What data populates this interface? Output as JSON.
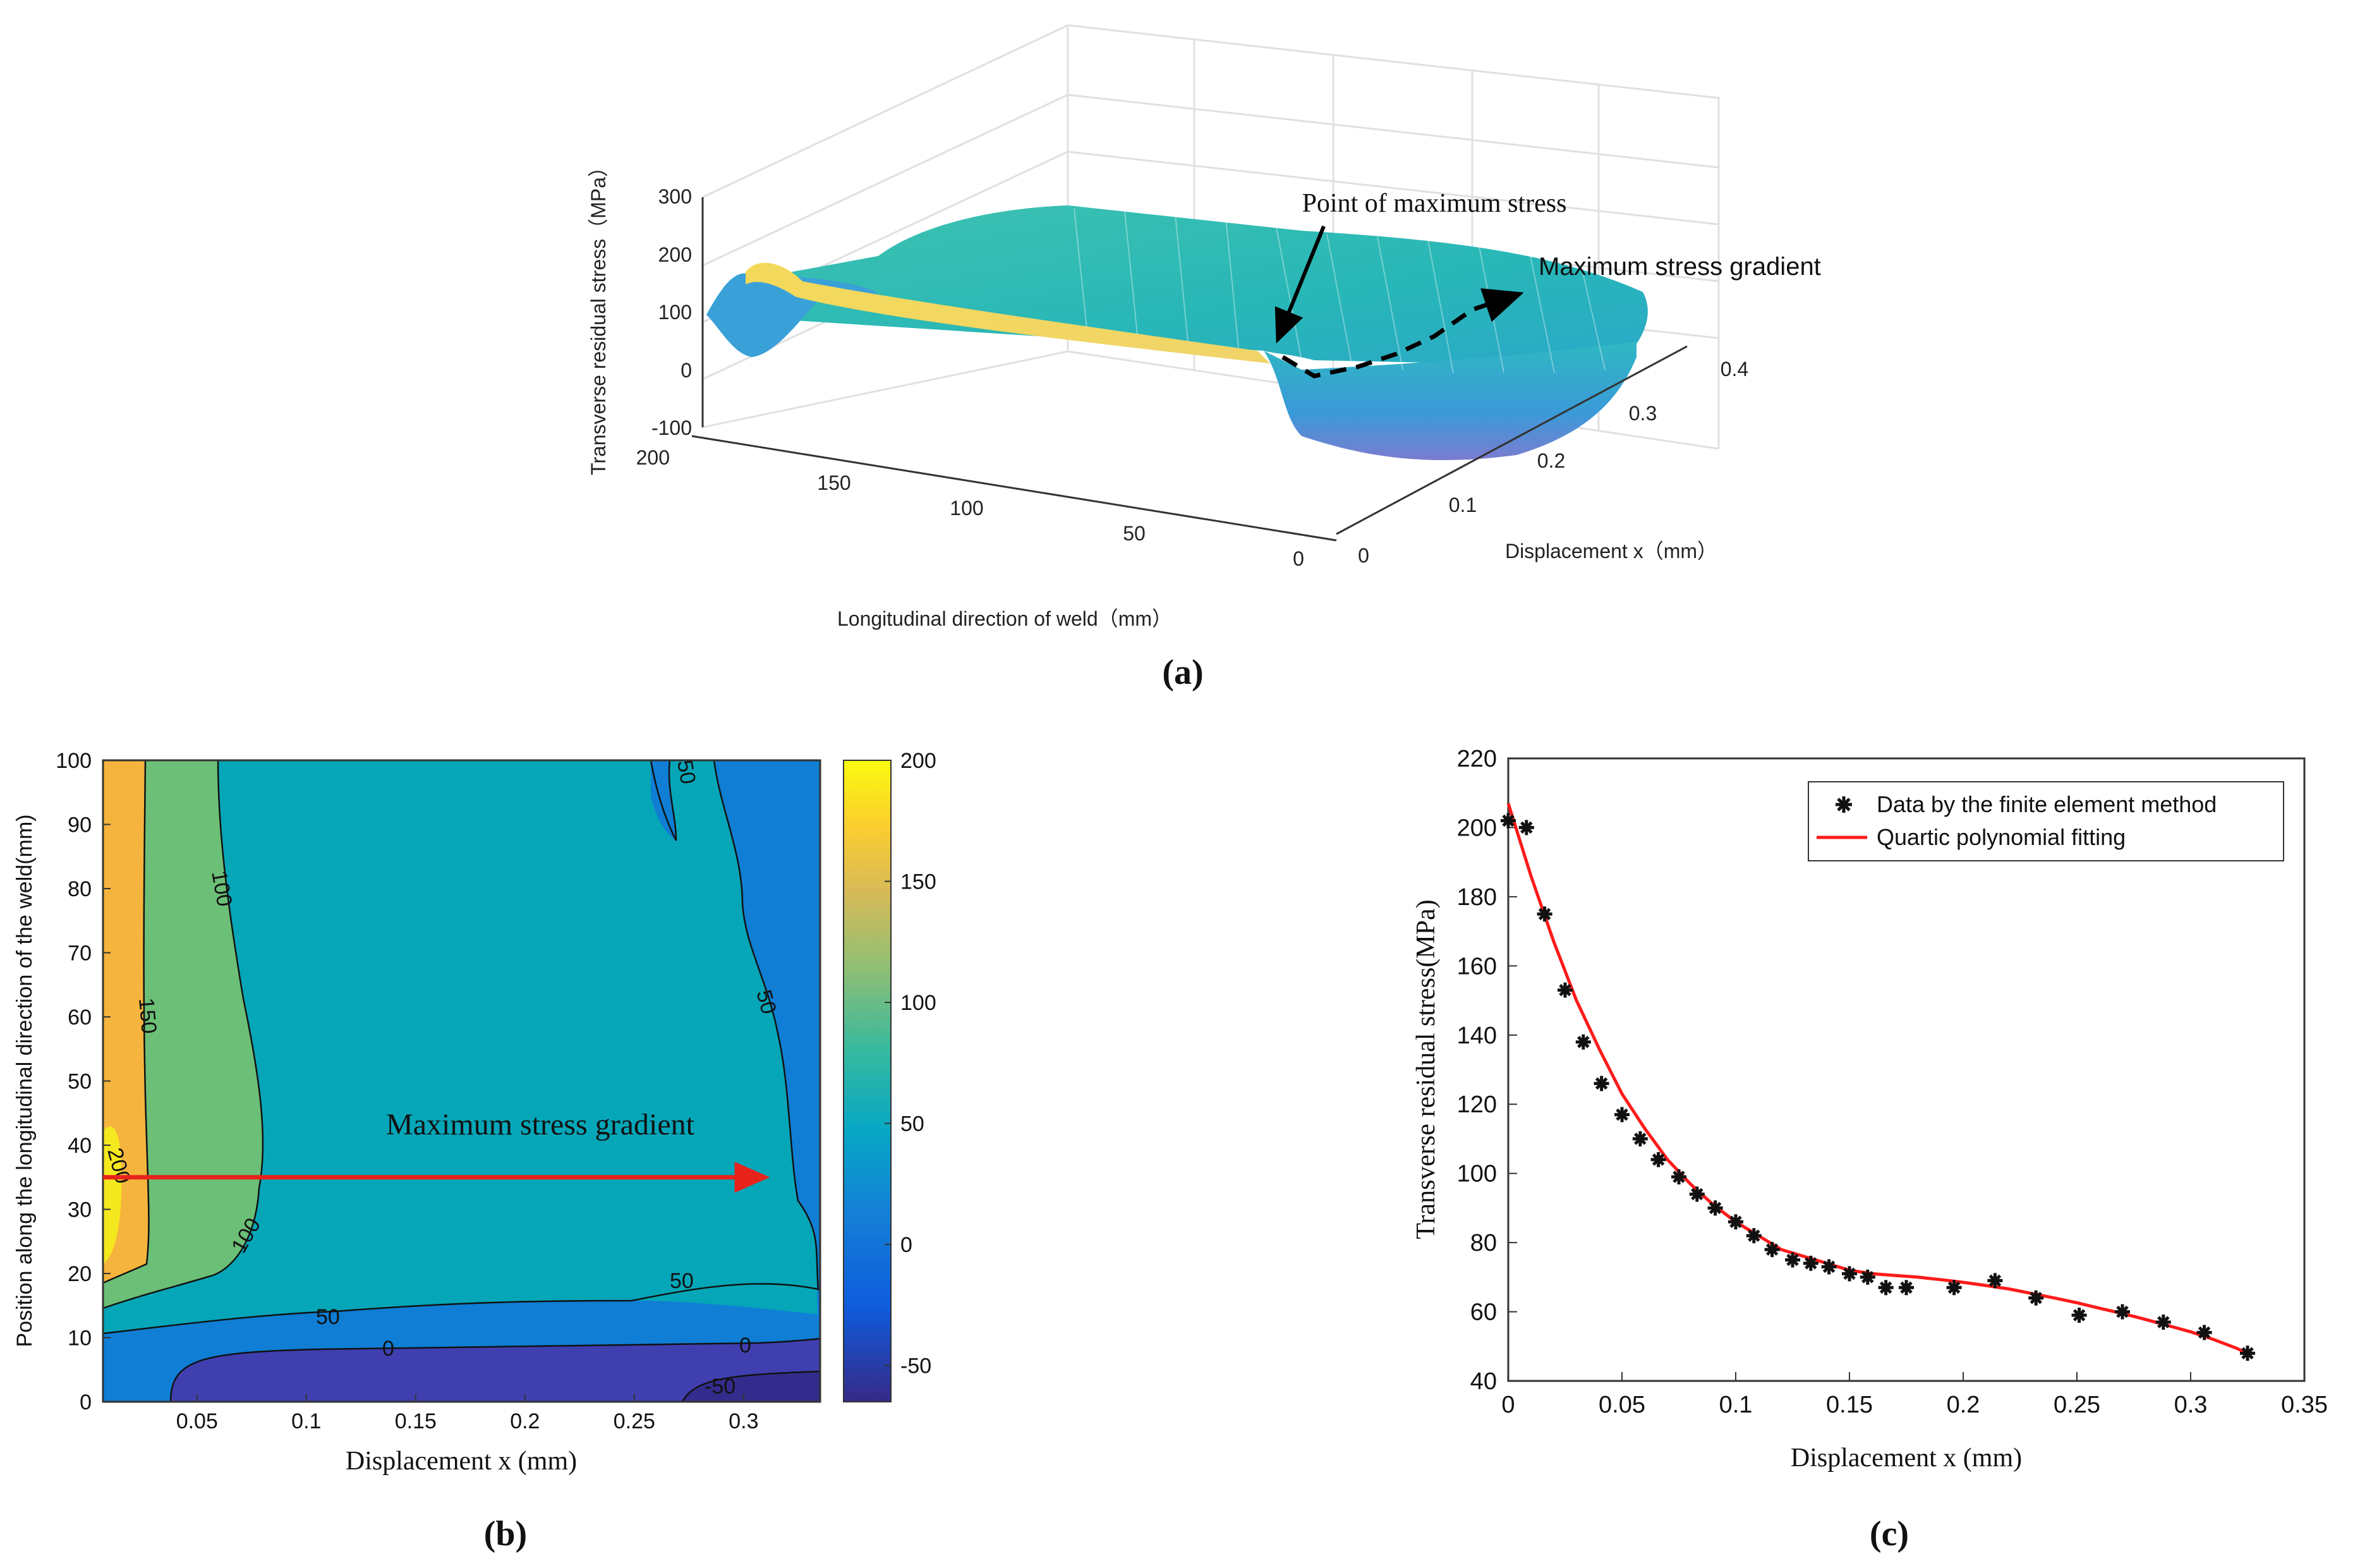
{
  "panels": {
    "a": {
      "caption": "(a)",
      "chart_data": {
        "type": "surface",
        "zlabel": "Transverse residual stress（MPa）",
        "xlabel": "Displacement x（mm）",
        "ylabel": "Longitudinal direction of weld（mm）",
        "z_ticks": [
          "300",
          "200",
          "100",
          "0",
          "-100"
        ],
        "x_ticks": [
          "0",
          "0.1",
          "0.2",
          "0.3",
          "0.4"
        ],
        "y_ticks": [
          "200",
          "150",
          "100",
          "50",
          "0"
        ],
        "zlim": [
          -100,
          300
        ],
        "xlim": [
          0,
          0.4
        ],
        "ylim": [
          0,
          200
        ],
        "annotations": [
          "Point of maximum stress",
          "Maximum stress gradient"
        ]
      }
    },
    "b": {
      "caption": "(b)",
      "chart_data": {
        "type": "contour",
        "xlabel": "Displacement x (mm)",
        "ylabel": "Position along the longitudinal direction of the weld(mm)",
        "xlim": [
          0.007,
          0.335
        ],
        "ylim": [
          0,
          100
        ],
        "x_ticks": [
          "0.05",
          "0.1",
          "0.15",
          "0.2",
          "0.25",
          "0.3"
        ],
        "y_ticks": [
          "0",
          "10",
          "20",
          "30",
          "40",
          "50",
          "60",
          "70",
          "80",
          "90",
          "100"
        ],
        "colorbar_ticks": [
          "200",
          "150",
          "100",
          "50",
          "0",
          "-50"
        ],
        "colorbar_range": [
          -65,
          200
        ],
        "contour_labels": [
          "200",
          "150",
          "100",
          "100",
          "50",
          "50",
          "50",
          "50",
          "0",
          "0",
          "-50"
        ],
        "annotation": "Maximum stress gradient",
        "arrow": {
          "x_from": 0.007,
          "x_to": 0.31,
          "y": 35
        }
      }
    },
    "c": {
      "caption": "(c)",
      "chart_data": {
        "type": "scatter+line",
        "xlabel": "Displacement x (mm)",
        "ylabel": "Transverse residual stress(MPa)",
        "xlim": [
          0,
          0.35
        ],
        "ylim": [
          40,
          220
        ],
        "x_ticks": [
          "0",
          "0.05",
          "0.1",
          "0.15",
          "0.2",
          "0.25",
          "0.3",
          "0.35"
        ],
        "y_ticks": [
          "40",
          "60",
          "80",
          "100",
          "120",
          "140",
          "160",
          "180",
          "200",
          "220"
        ],
        "legend": [
          "Data by the finite element method",
          "Quartic polynomial fitting"
        ],
        "scatter": {
          "name": "Data by the finite element method",
          "x": [
            0,
            0.008,
            0.016,
            0.025,
            0.033,
            0.041,
            0.05,
            0.058,
            0.066,
            0.075,
            0.083,
            0.091,
            0.1,
            0.108,
            0.116,
            0.125,
            0.133,
            0.141,
            0.15,
            0.158,
            0.166,
            0.175,
            0.196,
            0.214,
            0.232,
            0.251,
            0.27,
            0.288,
            0.306,
            0.325
          ],
          "y": [
            202,
            200,
            175,
            153,
            138,
            126,
            117,
            110,
            104,
            99,
            94,
            90,
            86,
            82,
            78,
            75,
            74,
            73,
            71,
            70,
            67,
            67,
            67,
            69,
            64,
            59,
            60,
            57,
            54,
            48
          ]
        },
        "fit": {
          "name": "Quartic polynomial fitting",
          "x": [
            0,
            0.01,
            0.02,
            0.03,
            0.04,
            0.05,
            0.06,
            0.07,
            0.08,
            0.09,
            0.1,
            0.11,
            0.12,
            0.13,
            0.14,
            0.15,
            0.16,
            0.17,
            0.18,
            0.19,
            0.2,
            0.21,
            0.22,
            0.23,
            0.24,
            0.25,
            0.26,
            0.27,
            0.28,
            0.29,
            0.3,
            0.31,
            0.32,
            0.325
          ],
          "y": [
            207,
            186,
            167,
            150,
            136,
            123,
            113,
            104,
            97,
            91,
            86,
            82,
            78,
            76,
            74,
            72,
            71,
            70.5,
            70,
            69.3,
            68.5,
            67.6,
            66.6,
            65.3,
            64,
            62.6,
            61,
            59.5,
            57.8,
            56,
            54.2,
            52,
            49.5,
            48
          ]
        }
      }
    }
  },
  "colors": {
    "fit_line": "#ff1a1a",
    "arrow_red": "#e8231b",
    "marker": "#111111"
  }
}
